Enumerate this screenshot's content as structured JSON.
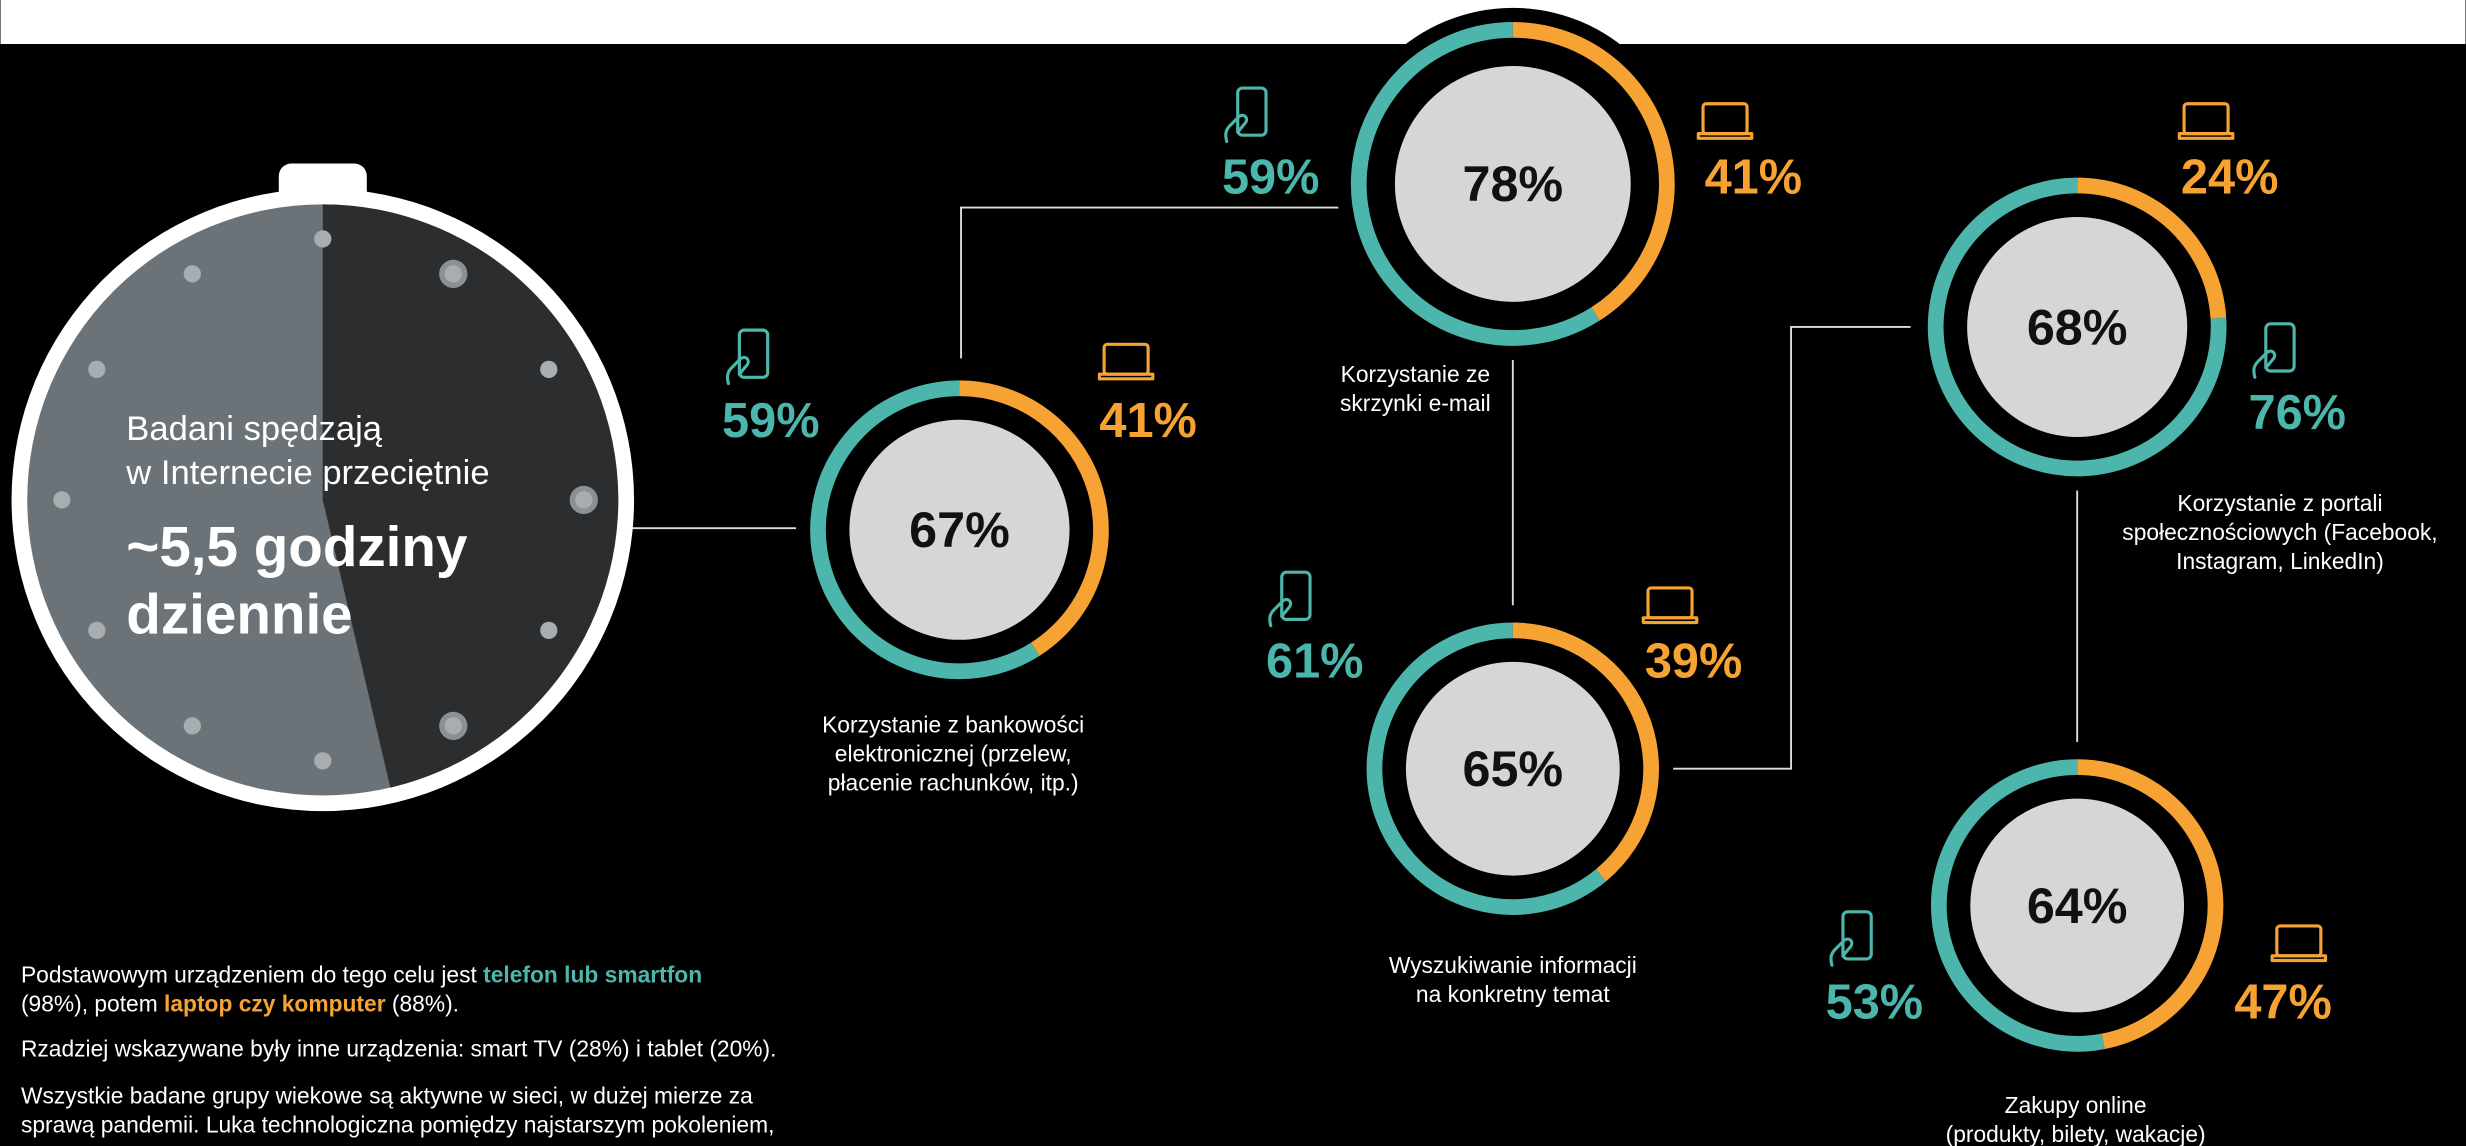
{
  "clock": {
    "lines": [
      "Badani spędzają",
      "w Internecie przeciętnie"
    ],
    "headline": [
      "~5,5 godziny",
      "dziennie"
    ]
  },
  "items": [
    {
      "center": {
        "value": 67,
        "label": "67%"
      },
      "phone": {
        "value": 59,
        "label": "59%"
      },
      "laptop": {
        "value": 41,
        "label": "41%"
      },
      "caption": [
        "Korzystanie z bankowości",
        "elektronicznej (przelew,",
        "płacenie rachunków, itp.)"
      ]
    },
    {
      "center": {
        "value": 78,
        "label": "78%"
      },
      "phone": {
        "value": 59,
        "label": "59%"
      },
      "laptop": {
        "value": 41,
        "label": "41%"
      },
      "caption": [
        "Korzystanie ze",
        "skrzynki e-mail"
      ]
    },
    {
      "center": {
        "value": 65,
        "label": "65%"
      },
      "phone": {
        "value": 61,
        "label": "61%"
      },
      "laptop": {
        "value": 39,
        "label": "39%"
      },
      "caption": [
        "Wyszukiwanie informacji",
        "na konkretny temat"
      ]
    },
    {
      "center": {
        "value": 68,
        "label": "68%"
      },
      "phone": {
        "value": 76,
        "label": "76%"
      },
      "laptop": {
        "value": 24,
        "label": "24%"
      },
      "caption": [
        "Korzystanie z portali",
        "społecznościowych (Facebook,",
        "Instagram, LinkedIn)"
      ]
    },
    {
      "center": {
        "value": 64,
        "label": "64%"
      },
      "phone": {
        "value": 53,
        "label": "53%"
      },
      "laptop": {
        "value": 47,
        "label": "47%"
      },
      "caption": [
        "Zakupy online",
        "(produkty, bilety, wakacje)"
      ]
    }
  ],
  "notes": [
    [
      [
        {
          "text": "Podstawowym urządzeniem do tego celu jest "
        },
        {
          "text": "telefon lub smartfon",
          "color": "#4db6ac"
        }
      ],
      [
        {
          "text": "(98%), potem "
        },
        {
          "text": "laptop czy komputer",
          "color": "#f7a334"
        },
        {
          "text": " (88%)."
        }
      ]
    ],
    [
      [
        {
          "text": "Rzadziej wskazywane były inne urządzenia: smart TV (28%) i tablet (20%)."
        }
      ]
    ],
    [
      [
        {
          "text": "Wszystkie badane grupy wiekowe są aktywne w sieci, w dużej mierze za"
        }
      ],
      [
        {
          "text": "sprawą pandemii. Luka technologiczna pomiędzy najstarszym pokoleniem,"
        }
      ]
    ]
  ]
}
